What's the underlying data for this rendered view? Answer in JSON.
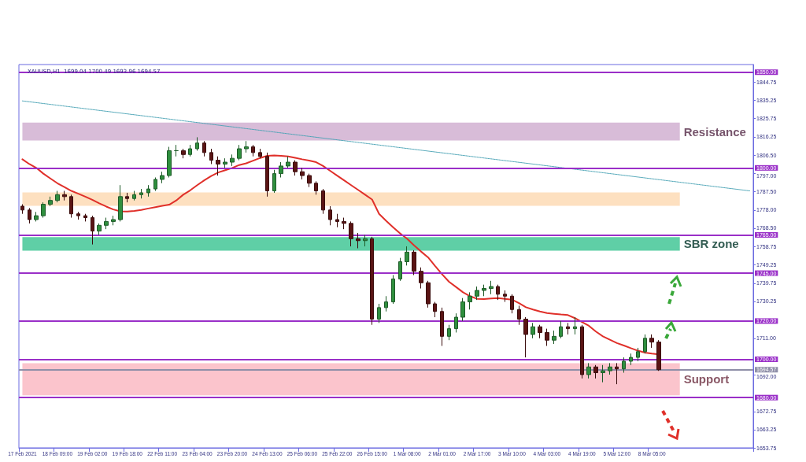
{
  "chart_data": {
    "type": "candlestick",
    "title": "XAUUSD,H1  1699.04 1700.49 1693.96 1694.57",
    "categories": [
      "17 Feb 2021",
      null,
      null,
      null,
      null,
      "18 Feb 09:00",
      null,
      null,
      null,
      null,
      "19 Feb 02:00",
      null,
      null,
      null,
      null,
      "19 Feb 18:00",
      null,
      null,
      null,
      null,
      "22 Feb 11:00",
      null,
      null,
      null,
      null,
      "23 Feb 04:00",
      null,
      null,
      null,
      null,
      "23 Feb 20:00",
      null,
      null,
      null,
      null,
      "24 Feb 13:00",
      null,
      null,
      null,
      null,
      "25 Feb 06:00",
      null,
      null,
      null,
      null,
      "25 Feb 22:00",
      null,
      null,
      null,
      null,
      "26 Feb 15:00",
      null,
      null,
      null,
      null,
      "1 Mar 08:00",
      null,
      null,
      null,
      null,
      "2 Mar 01:00",
      null,
      null,
      null,
      null,
      "2 Mar 17:00",
      null,
      null,
      null,
      null,
      "3 Mar 10:00",
      null,
      null,
      null,
      null,
      "4 Mar 03:00",
      null,
      null,
      null,
      null,
      "4 Mar 19:00",
      null,
      null,
      null,
      null,
      "5 Mar 12:00",
      null,
      null,
      null,
      null,
      "8 Mar 05:00",
      null,
      null,
      null,
      null,
      null,
      null,
      null,
      null,
      null,
      null,
      null,
      null,
      null,
      null
    ],
    "ohlc": [
      [
        1780,
        1781,
        1776,
        1778
      ],
      [
        1778,
        1779,
        1771,
        1773
      ],
      [
        1773,
        1777,
        1772,
        1775
      ],
      [
        1775,
        1782,
        1774,
        1781
      ],
      [
        1781,
        1785,
        1780,
        1783
      ],
      [
        1783,
        1788,
        1782,
        1786
      ],
      [
        1786,
        1788,
        1783,
        1785
      ],
      [
        1785,
        1786,
        1774,
        1776
      ],
      [
        1776,
        1777,
        1773,
        1775
      ],
      [
        1775,
        1776,
        1772,
        1774
      ],
      [
        1774,
        1775,
        1760,
        1767
      ],
      [
        1767,
        1771,
        1765,
        1770
      ],
      [
        1770,
        1774,
        1768,
        1772
      ],
      [
        1772,
        1775,
        1770,
        1773
      ],
      [
        1773,
        1791,
        1772,
        1785
      ],
      [
        1785,
        1787,
        1782,
        1784
      ],
      [
        1784,
        1788,
        1783,
        1786
      ],
      [
        1786,
        1789,
        1784,
        1787
      ],
      [
        1787,
        1791,
        1785,
        1789
      ],
      [
        1789,
        1795,
        1788,
        1794
      ],
      [
        1794,
        1798,
        1792,
        1796
      ],
      [
        1796,
        1811,
        1795,
        1809
      ],
      [
        1809,
        1812,
        1806,
        1809
      ],
      [
        1809,
        1810,
        1805,
        1807
      ],
      [
        1807,
        1812,
        1806,
        1810
      ],
      [
        1810,
        1816,
        1809,
        1813
      ],
      [
        1813,
        1814,
        1806,
        1808
      ],
      [
        1808,
        1810,
        1802,
        1804
      ],
      [
        1804,
        1806,
        1796,
        1802
      ],
      [
        1802,
        1805,
        1800,
        1803
      ],
      [
        1803,
        1807,
        1801,
        1805
      ],
      [
        1805,
        1812,
        1804,
        1810
      ],
      [
        1810,
        1814,
        1808,
        1811
      ],
      [
        1811,
        1812,
        1806,
        1808
      ],
      [
        1808,
        1810,
        1805,
        1806
      ],
      [
        1806,
        1808,
        1785,
        1788
      ],
      [
        1788,
        1799,
        1787,
        1797
      ],
      [
        1797,
        1803,
        1795,
        1801
      ],
      [
        1801,
        1806,
        1800,
        1803
      ],
      [
        1803,
        1804,
        1796,
        1798
      ],
      [
        1798,
        1800,
        1794,
        1796
      ],
      [
        1796,
        1797,
        1790,
        1792
      ],
      [
        1792,
        1793,
        1786,
        1788
      ],
      [
        1788,
        1789,
        1776,
        1778
      ],
      [
        1778,
        1780,
        1770,
        1773
      ],
      [
        1773,
        1776,
        1769,
        1772
      ],
      [
        1772,
        1774,
        1768,
        1771
      ],
      [
        1771,
        1772,
        1759,
        1763
      ],
      [
        1763,
        1766,
        1758,
        1762
      ],
      [
        1762,
        1765,
        1759,
        1763
      ],
      [
        1763,
        1764,
        1718,
        1721
      ],
      [
        1721,
        1729,
        1719,
        1727
      ],
      [
        1727,
        1733,
        1725,
        1730
      ],
      [
        1730,
        1744,
        1729,
        1742
      ],
      [
        1742,
        1753,
        1741,
        1751
      ],
      [
        1751,
        1759,
        1749,
        1756
      ],
      [
        1756,
        1757,
        1744,
        1746
      ],
      [
        1746,
        1748,
        1737,
        1740
      ],
      [
        1740,
        1741,
        1727,
        1729
      ],
      [
        1729,
        1730,
        1722,
        1725
      ],
      [
        1725,
        1727,
        1707,
        1712
      ],
      [
        1712,
        1718,
        1710,
        1716
      ],
      [
        1716,
        1724,
        1714,
        1722
      ],
      [
        1722,
        1732,
        1720,
        1730
      ],
      [
        1730,
        1735,
        1726,
        1733
      ],
      [
        1733,
        1738,
        1731,
        1736
      ],
      [
        1736,
        1739,
        1733,
        1737
      ],
      [
        1737,
        1741,
        1734,
        1738
      ],
      [
        1738,
        1739,
        1731,
        1734
      ],
      [
        1734,
        1736,
        1730,
        1733
      ],
      [
        1733,
        1734,
        1724,
        1726
      ],
      [
        1726,
        1728,
        1718,
        1721
      ],
      [
        1721,
        1722,
        1701,
        1713
      ],
      [
        1713,
        1719,
        1711,
        1717
      ],
      [
        1717,
        1718,
        1711,
        1714
      ],
      [
        1714,
        1716,
        1707,
        1710
      ],
      [
        1710,
        1715,
        1708,
        1712
      ],
      [
        1712,
        1720,
        1711,
        1717
      ],
      [
        1717,
        1719,
        1713,
        1716
      ],
      [
        1716,
        1722,
        1713,
        1717
      ],
      [
        1717,
        1718,
        1690,
        1692
      ],
      [
        1692,
        1698,
        1690,
        1696
      ],
      [
        1696,
        1697,
        1690,
        1693
      ],
      [
        1693,
        1697,
        1688,
        1694
      ],
      [
        1694,
        1698,
        1692,
        1696
      ],
      [
        1696,
        1698,
        1687,
        1695
      ],
      [
        1695,
        1701,
        1693,
        1699
      ],
      [
        1699,
        1703,
        1697,
        1701
      ],
      [
        1701,
        1706,
        1699,
        1704
      ],
      [
        1704,
        1713,
        1703,
        1711
      ],
      [
        1711,
        1713,
        1706,
        1709
      ],
      [
        1709,
        1710,
        1693.96,
        1694.57
      ],
      null,
      null,
      null,
      null,
      null,
      null,
      null,
      null,
      null,
      null,
      null,
      null,
      null
    ],
    "series": [
      {
        "type": "line",
        "color": "#e0302a",
        "line_style": "solid",
        "values": [
          1804.5,
          1802,
          1800,
          1797,
          1794.5,
          1792,
          1790,
          1788,
          1786.5,
          1785,
          1783.3,
          1781.5,
          1779.8,
          1778.3,
          1777.3,
          1777.2,
          1777.5,
          1778,
          1778.8,
          1779.5,
          1780.2,
          1780.8,
          1783,
          1786,
          1788.3,
          1791,
          1793.5,
          1795.8,
          1797.6,
          1798.8,
          1800,
          1801.5,
          1802.4,
          1803.8,
          1805.2,
          1806.3,
          1806.5,
          1806.3,
          1806,
          1805.3,
          1804.5,
          1803.8,
          1803,
          1801,
          1798.5,
          1796,
          1793.5,
          1791,
          1788.5,
          1786,
          1783.5,
          1776,
          1772.4,
          1769,
          1765.8,
          1763,
          1759.5,
          1756.3,
          1753.3,
          1748.8,
          1744.5,
          1740.5,
          1737.8,
          1735,
          1733,
          1731.6,
          1731.5,
          1731.8,
          1732,
          1731.6,
          1731.2,
          1729.4,
          1727.2,
          1726,
          1725,
          1724.2,
          1723.8,
          1723.4,
          1723.1,
          1721.5,
          1719.5,
          1717.5,
          1714.5,
          1712,
          1710.2,
          1708.5,
          1707.2,
          1705.8,
          1704.5,
          1703.5,
          1703,
          1702.6,
          null,
          null,
          null,
          null,
          null,
          null,
          null,
          null,
          null,
          null,
          null,
          null,
          null
        ]
      },
      {
        "type": "line",
        "color": "#4aa3b5",
        "line_style": "dotted",
        "values": [
          1835,
          null,
          null,
          null,
          null,
          null,
          null,
          null,
          null,
          null,
          null,
          null,
          null,
          null,
          null,
          null,
          null,
          null,
          null,
          null,
          null,
          null,
          null,
          null,
          null,
          null,
          null,
          null,
          null,
          null,
          null,
          null,
          null,
          null,
          null,
          null,
          null,
          null,
          null,
          null,
          null,
          null,
          null,
          null,
          null,
          null,
          null,
          null,
          null,
          null,
          null,
          null,
          null,
          null,
          null,
          null,
          null,
          null,
          null,
          null,
          null,
          null,
          null,
          null,
          null,
          null,
          null,
          null,
          null,
          null,
          null,
          null,
          null,
          null,
          null,
          null,
          null,
          null,
          null,
          null,
          null,
          null,
          null,
          null,
          null,
          null,
          null,
          null,
          null,
          null,
          null,
          null,
          null,
          null,
          null,
          null,
          null,
          null,
          null,
          null,
          null,
          null,
          null,
          null,
          1788
        ]
      }
    ],
    "marker": "none",
    "ylim": [
      1653.75,
      1854
    ],
    "yticks": [
      {
        "value": 1844.75,
        "label": "1844.75"
      },
      {
        "value": 1835.25,
        "label": "1835.25"
      },
      {
        "value": 1825.75,
        "label": "1825.75"
      },
      {
        "value": 1816.25,
        "label": "1816.25"
      },
      {
        "value": 1806.5,
        "label": "1806.50"
      },
      {
        "value": 1797,
        "label": "1797.00"
      },
      {
        "value": 1787.5,
        "label": "1787.50"
      },
      {
        "value": 1778,
        "label": "1778.00"
      },
      {
        "value": 1768.5,
        "label": "1768.50"
      },
      {
        "value": 1758.75,
        "label": "1758.75"
      },
      {
        "value": 1749.25,
        "label": "1749.25"
      },
      {
        "value": 1739.75,
        "label": "1739.75"
      },
      {
        "value": 1730.25,
        "label": "1730.25"
      },
      {
        "value": 1711,
        "label": "1711.00"
      },
      {
        "value": 1692,
        "label": "1692.00"
      },
      {
        "value": 1672.75,
        "label": "1672.75"
      },
      {
        "value": 1663.25,
        "label": "1663.25"
      },
      {
        "value": 1653.75,
        "label": "1653.75"
      }
    ],
    "ref_lines": [
      {
        "axis": "y",
        "value": 1850,
        "label": "1850.00",
        "color": "#9a2fc8"
      },
      {
        "axis": "y",
        "value": 1800,
        "label": "1800.00",
        "color": "#9a2fc8"
      },
      {
        "axis": "y",
        "value": 1765,
        "label": "1765.00",
        "color": "#9a2fc8"
      },
      {
        "axis": "y",
        "value": 1745,
        "label": "1745.00",
        "color": "#9a2fc8"
      },
      {
        "axis": "y",
        "value": 1720,
        "label": "1720.00",
        "color": "#9a2fc8"
      },
      {
        "axis": "y",
        "value": 1700,
        "label": "1700.00",
        "color": "#9a2fc8"
      },
      {
        "axis": "y",
        "value": 1680,
        "label": "1680.00",
        "color": "#9a2fc8"
      },
      {
        "axis": "y",
        "value": 1694.57,
        "label": "1694.57",
        "color": "#8f8fa8"
      }
    ],
    "bands": [
      {
        "axis": "y",
        "from": 1814.3,
        "to": 1823.7,
        "label": "Resistance",
        "color": "#d8bcd8"
      },
      {
        "axis": "y",
        "from": 1780.2,
        "to": 1787.2,
        "label": null,
        "color": "#fde0c0"
      },
      {
        "axis": "y",
        "from": 1756.8,
        "to": 1763.8,
        "label": "SBR zone",
        "color": "#5fcfa6"
      },
      {
        "axis": "y",
        "from": 1681.2,
        "to": 1698,
        "label": "Support",
        "color": "#fbc4cc"
      }
    ],
    "grid": false
  }
}
